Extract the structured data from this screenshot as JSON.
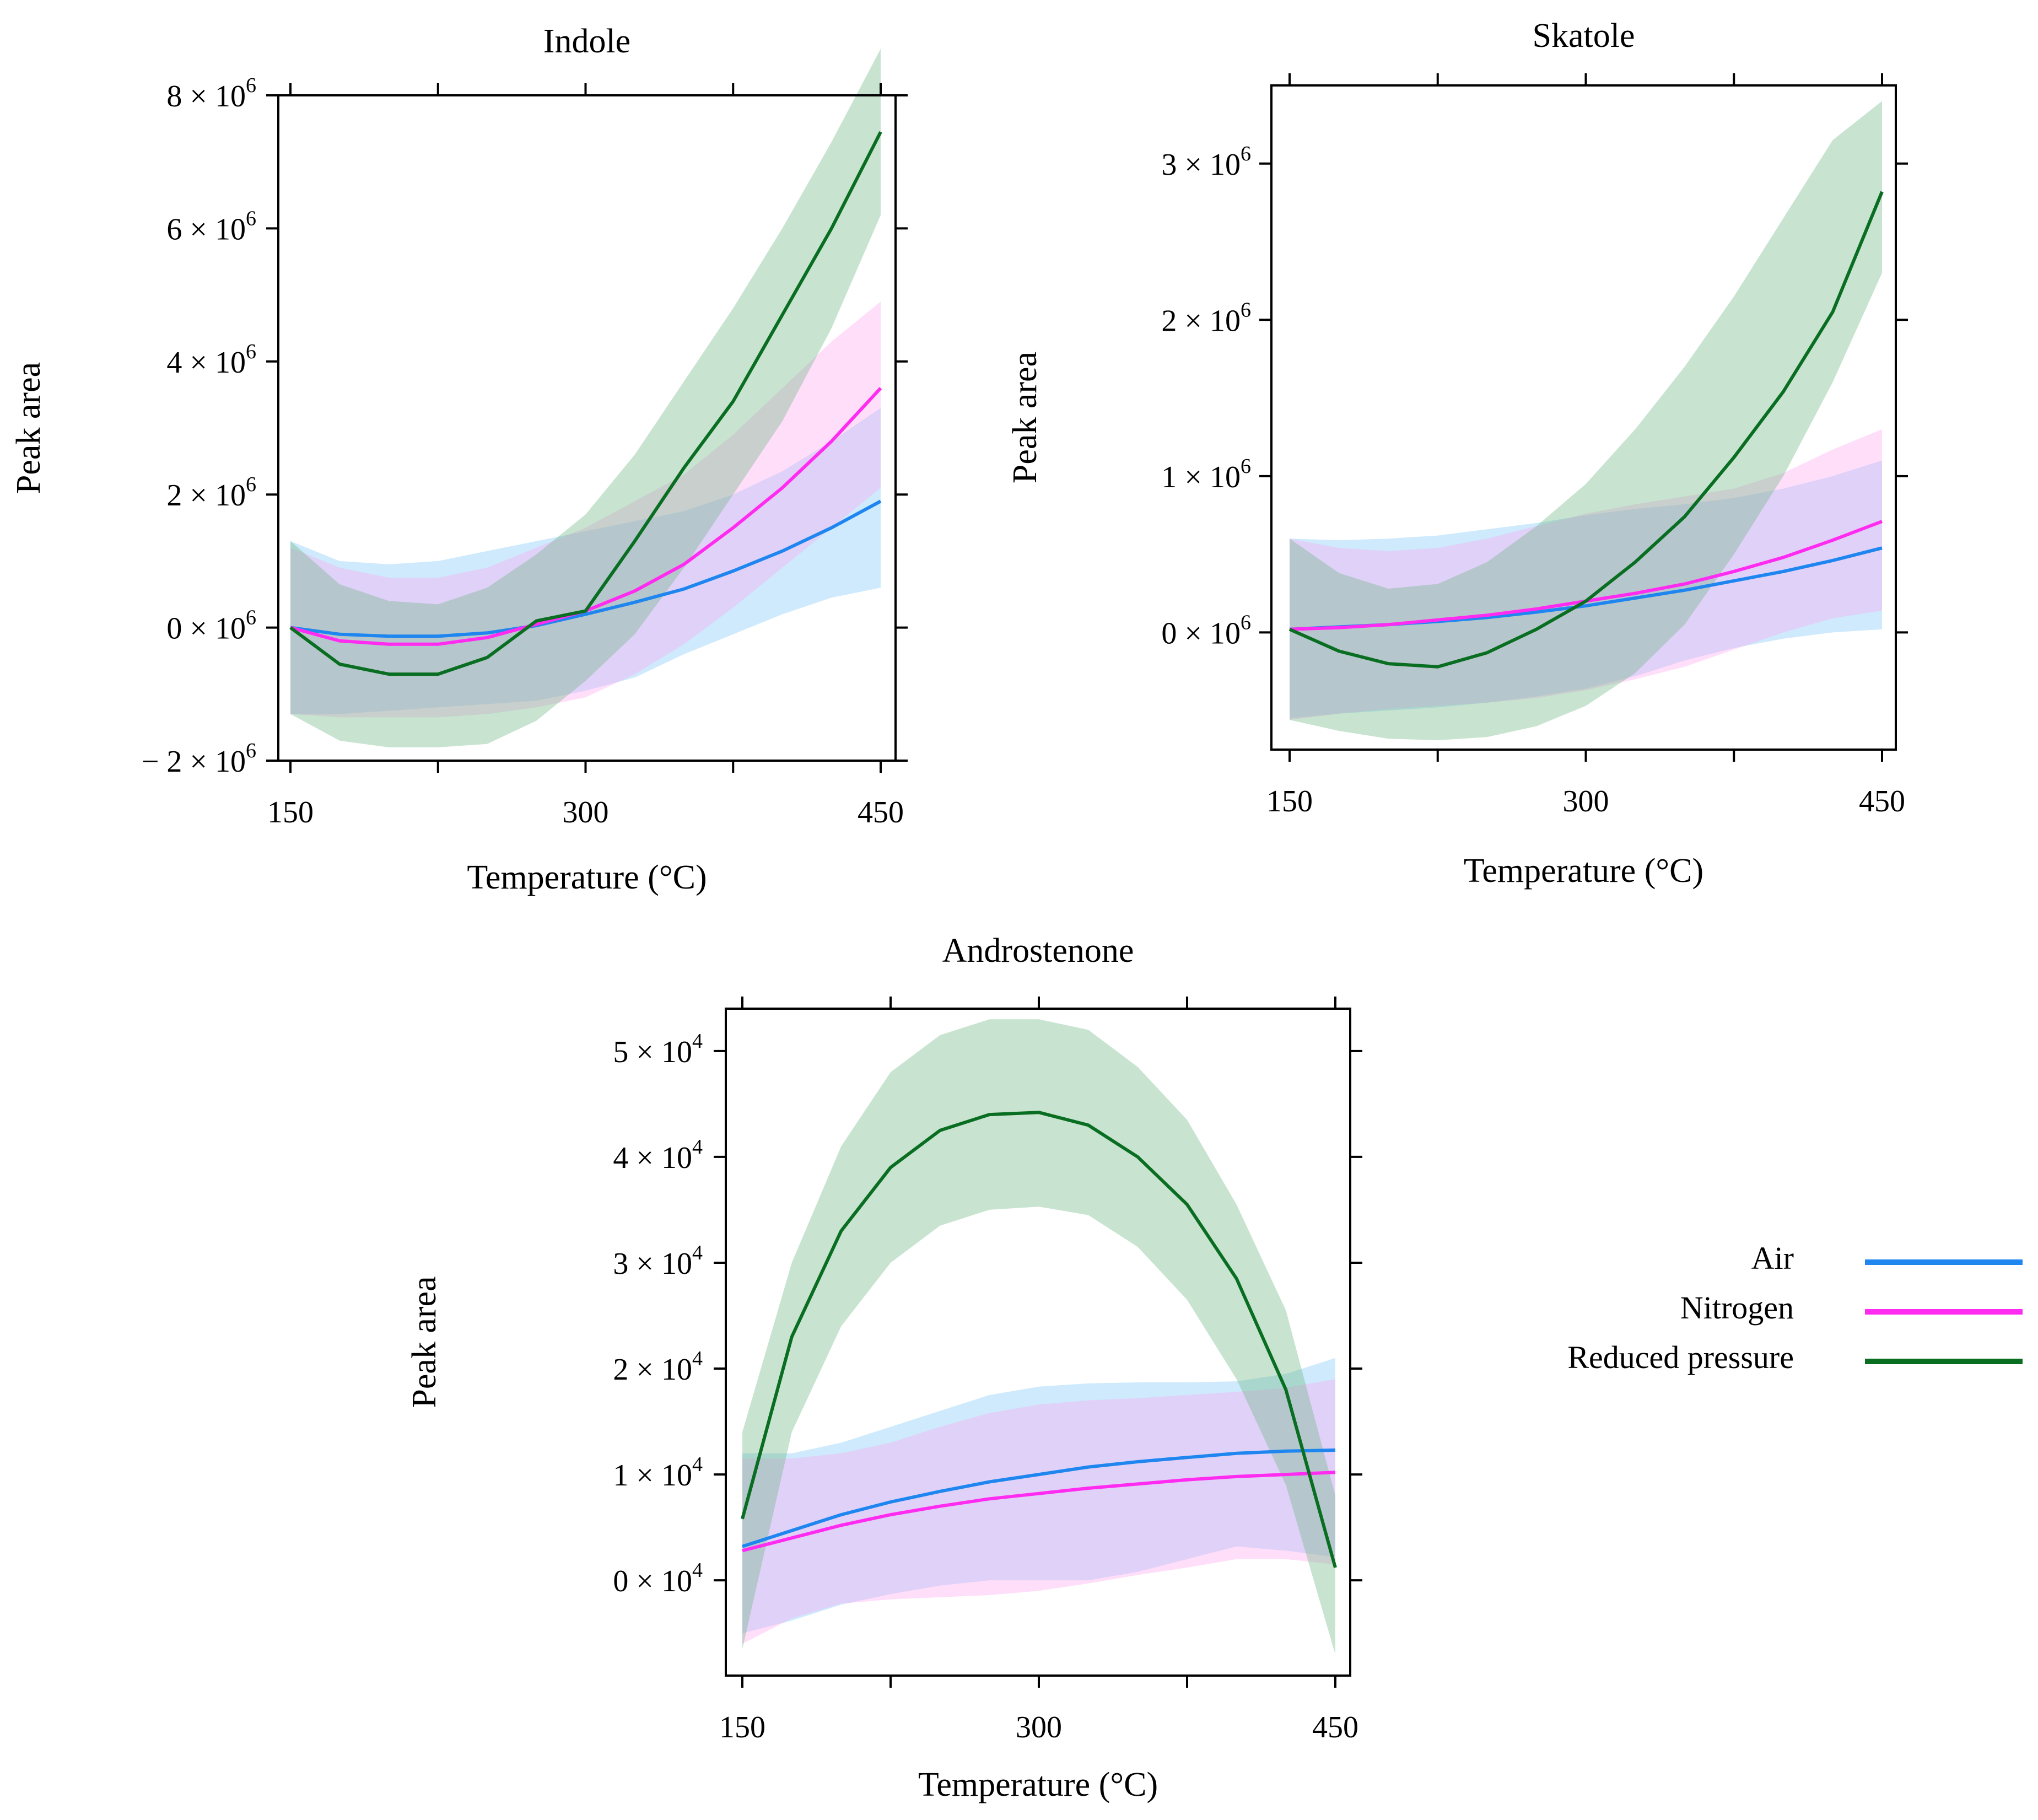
{
  "figure_title": "Peak area versus temperature for Indole, Skatole and Androstenone",
  "colors": {
    "air": "#1f86f0",
    "nitrogen": "#ff2bf0",
    "reduced_pressure": "#0a6e22",
    "air_band": "#7fc8f8",
    "nitrogen_band": "#ffa8f2",
    "reduced_pressure_band": "#6fb884"
  },
  "legend": {
    "items": [
      {
        "label": "Air",
        "series": "air"
      },
      {
        "label": "Nitrogen",
        "series": "nitrogen"
      },
      {
        "label": "Reduced pressure",
        "series": "reduced_pressure"
      }
    ]
  },
  "chart_data": [
    {
      "type": "line",
      "title": "Indole",
      "xlabel": "Temperature  (°C)",
      "ylabel": "Peak area",
      "x": [
        150,
        175,
        200,
        225,
        250,
        275,
        300,
        325,
        350,
        375,
        400,
        425,
        450
      ],
      "xlim": [
        150,
        450
      ],
      "xticks": [
        150,
        300,
        450
      ],
      "ylim": [
        -2000000,
        8000000
      ],
      "yticks": [
        -2000000,
        0,
        2000000,
        4000000,
        6000000,
        8000000
      ],
      "ytick_labels": [
        "− 2 × 10^6",
        "0 × 10^6",
        "2 × 10^6",
        "4 × 10^6",
        "6 × 10^6",
        "8 × 10^6"
      ],
      "series": [
        {
          "name": "Air",
          "key": "air",
          "values": [
            0,
            -100000,
            -130000,
            -130000,
            -80000,
            30000,
            200000,
            380000,
            580000,
            850000,
            1150000,
            1500000,
            1900000
          ],
          "lower": [
            -1300000,
            -1300000,
            -1250000,
            -1200000,
            -1150000,
            -1100000,
            -950000,
            -750000,
            -400000,
            -100000,
            200000,
            450000,
            600000
          ],
          "upper": [
            1300000,
            1000000,
            950000,
            1000000,
            1150000,
            1300000,
            1450000,
            1600000,
            1750000,
            2000000,
            2350000,
            2800000,
            3300000
          ]
        },
        {
          "name": "Nitrogen",
          "key": "nitrogen",
          "values": [
            0,
            -200000,
            -250000,
            -250000,
            -150000,
            50000,
            250000,
            550000,
            950000,
            1500000,
            2100000,
            2800000,
            3600000
          ],
          "lower": [
            -1300000,
            -1350000,
            -1350000,
            -1350000,
            -1300000,
            -1200000,
            -1050000,
            -700000,
            -250000,
            300000,
            900000,
            1500000,
            2100000
          ],
          "upper": [
            1200000,
            900000,
            750000,
            750000,
            900000,
            1200000,
            1500000,
            1900000,
            2300000,
            2900000,
            3600000,
            4300000,
            4900000
          ]
        },
        {
          "name": "Reduced pressure",
          "key": "reduced_pressure",
          "values": [
            0,
            -550000,
            -700000,
            -700000,
            -450000,
            100000,
            250000,
            1300000,
            2400000,
            3400000,
            4700000,
            6000000,
            7450000
          ],
          "lower": [
            -1300000,
            -1700000,
            -1800000,
            -1800000,
            -1750000,
            -1400000,
            -800000,
            -100000,
            900000,
            2000000,
            3100000,
            4500000,
            6200000
          ],
          "upper": [
            1300000,
            650000,
            400000,
            350000,
            600000,
            1100000,
            1700000,
            2600000,
            3700000,
            4800000,
            6000000,
            7300000,
            8700000
          ]
        }
      ]
    },
    {
      "type": "line",
      "title": "Skatole",
      "xlabel": "Temperature  (°C)",
      "ylabel": "Peak area",
      "x": [
        150,
        175,
        200,
        225,
        250,
        275,
        300,
        325,
        350,
        375,
        400,
        425,
        450
      ],
      "xlim": [
        150,
        450
      ],
      "xticks": [
        150,
        300,
        450
      ],
      "ylim": [
        -750000,
        3500000
      ],
      "yticks": [
        0,
        1000000,
        2000000,
        3000000
      ],
      "ytick_labels": [
        "0 × 10^6",
        "1 × 10^6",
        "2 × 10^6",
        "3 × 10^6"
      ],
      "series": [
        {
          "name": "Air",
          "key": "air",
          "values": [
            20000,
            35000,
            50000,
            70000,
            95000,
            130000,
            170000,
            220000,
            270000,
            330000,
            390000,
            460000,
            540000
          ],
          "lower": [
            -550000,
            -520000,
            -500000,
            -480000,
            -450000,
            -410000,
            -360000,
            -280000,
            -180000,
            -100000,
            -40000,
            0,
            20000
          ],
          "upper": [
            600000,
            590000,
            600000,
            620000,
            660000,
            700000,
            750000,
            790000,
            820000,
            860000,
            920000,
            1000000,
            1100000
          ]
        },
        {
          "name": "Nitrogen",
          "key": "nitrogen",
          "values": [
            20000,
            30000,
            50000,
            80000,
            110000,
            150000,
            200000,
            250000,
            310000,
            390000,
            480000,
            590000,
            710000
          ],
          "lower": [
            -560000,
            -520000,
            -490000,
            -470000,
            -450000,
            -420000,
            -370000,
            -300000,
            -220000,
            -110000,
            0,
            90000,
            140000
          ],
          "upper": [
            600000,
            540000,
            520000,
            540000,
            600000,
            680000,
            760000,
            820000,
            870000,
            920000,
            1020000,
            1170000,
            1300000
          ]
        },
        {
          "name": "Reduced pressure",
          "key": "reduced_pressure",
          "values": [
            20000,
            -120000,
            -200000,
            -220000,
            -130000,
            20000,
            200000,
            450000,
            740000,
            1120000,
            1540000,
            2050000,
            2820000
          ],
          "lower": [
            -560000,
            -630000,
            -680000,
            -690000,
            -670000,
            -600000,
            -470000,
            -260000,
            50000,
            500000,
            1000000,
            1600000,
            2300000
          ],
          "upper": [
            600000,
            380000,
            280000,
            310000,
            450000,
            680000,
            950000,
            1300000,
            1700000,
            2150000,
            2650000,
            3150000,
            3400000
          ]
        }
      ]
    },
    {
      "type": "line",
      "title": "Androstenone",
      "xlabel": "Temperature  (°C)",
      "ylabel": "Peak area",
      "x": [
        150,
        175,
        200,
        225,
        250,
        275,
        300,
        325,
        350,
        375,
        400,
        425,
        450
      ],
      "xlim": [
        150,
        450
      ],
      "xticks": [
        150,
        300,
        450
      ],
      "ylim": [
        -9000,
        54000
      ],
      "yticks": [
        0,
        10000,
        20000,
        30000,
        40000,
        50000
      ],
      "ytick_labels": [
        "0 × 10^4",
        "1 × 10^4",
        "2 × 10^4",
        "3 × 10^4",
        "4 × 10^4",
        "5 × 10^4"
      ],
      "series": [
        {
          "name": "Air",
          "key": "air",
          "values": [
            3200,
            4700,
            6200,
            7400,
            8400,
            9300,
            10000,
            10700,
            11200,
            11600,
            12000,
            12200,
            12300
          ],
          "lower": [
            -5000,
            -3800,
            -2300,
            -1300,
            -500,
            0,
            0,
            0,
            800,
            2000,
            3200,
            2800,
            2200
          ],
          "upper": [
            12000,
            12000,
            13000,
            14500,
            16000,
            17500,
            18300,
            18600,
            18700,
            18700,
            18800,
            19500,
            21000
          ]
        },
        {
          "name": "Nitrogen",
          "key": "nitrogen",
          "values": [
            2800,
            4000,
            5200,
            6200,
            7000,
            7700,
            8200,
            8700,
            9100,
            9500,
            9800,
            10000,
            10200
          ],
          "lower": [
            -6000,
            -3600,
            -2200,
            -1800,
            -1600,
            -1400,
            -1000,
            -300,
            500,
            1200,
            2000,
            2000,
            1500
          ],
          "upper": [
            11500,
            11500,
            12000,
            13000,
            14500,
            15800,
            16600,
            17000,
            17200,
            17500,
            17800,
            18200,
            19000
          ]
        },
        {
          "name": "Reduced pressure",
          "key": "reduced_pressure",
          "values": [
            5800,
            23000,
            33000,
            39000,
            42500,
            44000,
            44200,
            43000,
            40000,
            35500,
            28500,
            18000,
            1200
          ],
          "lower": [
            -6500,
            14000,
            24000,
            30000,
            33500,
            35000,
            35300,
            34500,
            31500,
            26500,
            19000,
            9000,
            -7000
          ],
          "upper": [
            14000,
            30000,
            41000,
            48000,
            51500,
            53000,
            53000,
            52000,
            48500,
            43500,
            35500,
            25500,
            8000
          ]
        }
      ]
    }
  ]
}
